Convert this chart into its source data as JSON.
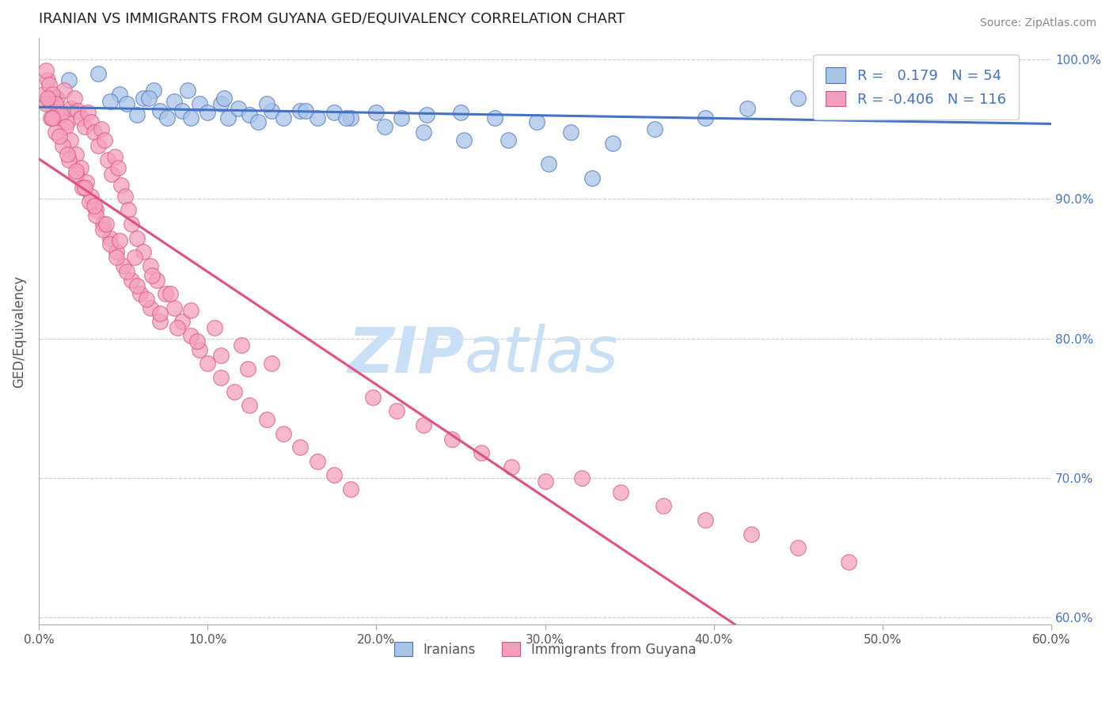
{
  "title": "IRANIAN VS IMMIGRANTS FROM GUYANA GED/EQUIVALENCY CORRELATION CHART",
  "source": "Source: ZipAtlas.com",
  "ylabel": "GED/Equivalency",
  "r_blue": 0.179,
  "n_blue": 54,
  "r_pink": -0.406,
  "n_pink": 116,
  "xmin": 0.0,
  "xmax": 0.6,
  "ymin": 0.595,
  "ymax": 1.015,
  "yticks": [
    0.6,
    0.7,
    0.8,
    0.9,
    1.0
  ],
  "ytick_labels": [
    "60.0%",
    "70.0%",
    "80.0%",
    "90.0%",
    "100.0%"
  ],
  "xticks": [
    0.0,
    0.1,
    0.2,
    0.3,
    0.4,
    0.5,
    0.6
  ],
  "xtick_labels": [
    "0.0%",
    "10.0%",
    "20.0%",
    "30.0%",
    "40.0%",
    "50.0%",
    "60.0%"
  ],
  "color_blue": "#aac4e8",
  "color_pink": "#f4a0bc",
  "edge_blue": "#4472c4",
  "edge_pink": "#e05080",
  "line_blue": "#4472c4",
  "line_pink": "#e05080",
  "watermark_zip": "ZIP",
  "watermark_atlas": "atlas",
  "watermark_color": "#c8dff5",
  "legend_blue_label": "Iranians",
  "legend_pink_label": "Immigrants from Guyana",
  "blue_x": [
    0.018,
    0.035,
    0.048,
    0.052,
    0.058,
    0.062,
    0.068,
    0.072,
    0.076,
    0.08,
    0.085,
    0.09,
    0.095,
    0.1,
    0.108,
    0.112,
    0.118,
    0.125,
    0.13,
    0.138,
    0.145,
    0.155,
    0.165,
    0.175,
    0.185,
    0.2,
    0.215,
    0.23,
    0.25,
    0.27,
    0.295,
    0.315,
    0.34,
    0.365,
    0.395,
    0.42,
    0.45,
    0.48,
    0.51,
    0.545,
    0.575,
    0.042,
    0.065,
    0.088,
    0.11,
    0.135,
    0.158,
    0.182,
    0.205,
    0.228,
    0.252,
    0.278,
    0.302,
    0.328
  ],
  "blue_y": [
    0.985,
    0.99,
    0.975,
    0.968,
    0.96,
    0.972,
    0.978,
    0.963,
    0.958,
    0.97,
    0.963,
    0.958,
    0.968,
    0.962,
    0.968,
    0.958,
    0.965,
    0.96,
    0.955,
    0.963,
    0.958,
    0.963,
    0.958,
    0.962,
    0.958,
    0.962,
    0.958,
    0.96,
    0.962,
    0.958,
    0.955,
    0.948,
    0.94,
    0.95,
    0.958,
    0.965,
    0.972,
    0.98,
    0.988,
    0.965,
    0.972,
    0.97,
    0.972,
    0.978,
    0.972,
    0.968,
    0.963,
    0.958,
    0.952,
    0.948,
    0.942,
    0.942,
    0.925,
    0.915
  ],
  "pink_x": [
    0.003,
    0.005,
    0.007,
    0.009,
    0.011,
    0.013,
    0.015,
    0.017,
    0.019,
    0.021,
    0.023,
    0.025,
    0.027,
    0.029,
    0.031,
    0.033,
    0.035,
    0.037,
    0.039,
    0.041,
    0.043,
    0.045,
    0.047,
    0.049,
    0.051,
    0.053,
    0.055,
    0.058,
    0.062,
    0.066,
    0.07,
    0.075,
    0.08,
    0.085,
    0.09,
    0.095,
    0.1,
    0.108,
    0.116,
    0.125,
    0.135,
    0.145,
    0.155,
    0.165,
    0.175,
    0.185,
    0.198,
    0.212,
    0.228,
    0.245,
    0.262,
    0.28,
    0.3,
    0.322,
    0.345,
    0.37,
    0.395,
    0.422,
    0.45,
    0.48,
    0.004,
    0.006,
    0.008,
    0.01,
    0.013,
    0.016,
    0.019,
    0.022,
    0.025,
    0.028,
    0.031,
    0.034,
    0.038,
    0.042,
    0.046,
    0.05,
    0.055,
    0.06,
    0.066,
    0.072,
    0.004,
    0.007,
    0.01,
    0.014,
    0.018,
    0.022,
    0.026,
    0.03,
    0.034,
    0.038,
    0.042,
    0.046,
    0.052,
    0.058,
    0.064,
    0.072,
    0.082,
    0.094,
    0.108,
    0.124,
    0.005,
    0.008,
    0.012,
    0.017,
    0.022,
    0.027,
    0.033,
    0.04,
    0.048,
    0.057,
    0.067,
    0.078,
    0.09,
    0.104,
    0.12,
    0.138
  ],
  "pink_y": [
    0.975,
    0.985,
    0.968,
    0.958,
    0.972,
    0.962,
    0.978,
    0.955,
    0.965,
    0.972,
    0.963,
    0.958,
    0.952,
    0.962,
    0.955,
    0.948,
    0.938,
    0.95,
    0.942,
    0.928,
    0.918,
    0.93,
    0.922,
    0.91,
    0.902,
    0.892,
    0.882,
    0.872,
    0.862,
    0.852,
    0.842,
    0.832,
    0.822,
    0.812,
    0.802,
    0.792,
    0.782,
    0.772,
    0.762,
    0.752,
    0.742,
    0.732,
    0.722,
    0.712,
    0.702,
    0.692,
    0.758,
    0.748,
    0.738,
    0.728,
    0.718,
    0.708,
    0.698,
    0.7,
    0.69,
    0.68,
    0.67,
    0.66,
    0.65,
    0.64,
    0.992,
    0.982,
    0.975,
    0.968,
    0.96,
    0.952,
    0.942,
    0.932,
    0.922,
    0.912,
    0.902,
    0.892,
    0.882,
    0.872,
    0.862,
    0.852,
    0.842,
    0.832,
    0.822,
    0.812,
    0.968,
    0.958,
    0.948,
    0.938,
    0.928,
    0.918,
    0.908,
    0.898,
    0.888,
    0.878,
    0.868,
    0.858,
    0.848,
    0.838,
    0.828,
    0.818,
    0.808,
    0.798,
    0.788,
    0.778,
    0.972,
    0.958,
    0.945,
    0.932,
    0.92,
    0.908,
    0.895,
    0.882,
    0.87,
    0.858,
    0.845,
    0.832,
    0.82,
    0.808,
    0.795,
    0.782
  ]
}
